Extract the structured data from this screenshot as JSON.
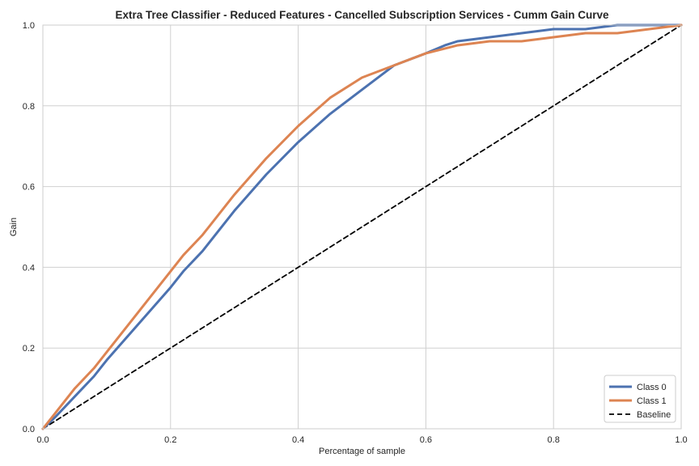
{
  "chart_data": {
    "type": "line",
    "title": "Extra Tree Classifier - Reduced Features - Cancelled Subscription Services - Cumm Gain Curve",
    "xlabel": "Percentage of sample",
    "ylabel": "Gain",
    "xlim": [
      0,
      1
    ],
    "ylim": [
      0,
      1
    ],
    "xticks": [
      "0.0",
      "0.2",
      "0.4",
      "0.6",
      "0.8",
      "1.0"
    ],
    "yticks": [
      "0.0",
      "0.2",
      "0.4",
      "0.6",
      "0.8",
      "1.0"
    ],
    "grid": true,
    "legend_position": "bottom-right",
    "series": [
      {
        "name": "Class 0",
        "color": "#4c72b0",
        "style": "solid",
        "x": [
          0.0,
          0.02,
          0.05,
          0.08,
          0.1,
          0.15,
          0.2,
          0.22,
          0.25,
          0.3,
          0.35,
          0.4,
          0.45,
          0.5,
          0.55,
          0.6,
          0.63,
          0.65,
          0.7,
          0.75,
          0.8,
          0.85,
          0.9,
          0.95,
          1.0
        ],
        "y": [
          0.0,
          0.03,
          0.08,
          0.13,
          0.17,
          0.26,
          0.35,
          0.39,
          0.44,
          0.54,
          0.63,
          0.71,
          0.78,
          0.84,
          0.9,
          0.93,
          0.95,
          0.96,
          0.97,
          0.98,
          0.99,
          0.99,
          1.0,
          1.0,
          1.0
        ]
      },
      {
        "name": "Class 1",
        "color": "#dd8452",
        "style": "solid",
        "x": [
          0.0,
          0.02,
          0.05,
          0.08,
          0.1,
          0.15,
          0.2,
          0.22,
          0.25,
          0.3,
          0.35,
          0.4,
          0.45,
          0.5,
          0.55,
          0.6,
          0.65,
          0.7,
          0.75,
          0.8,
          0.85,
          0.9,
          0.95,
          1.0
        ],
        "y": [
          0.0,
          0.04,
          0.1,
          0.15,
          0.19,
          0.29,
          0.39,
          0.43,
          0.48,
          0.58,
          0.67,
          0.75,
          0.82,
          0.87,
          0.9,
          0.93,
          0.95,
          0.96,
          0.96,
          0.97,
          0.98,
          0.98,
          0.99,
          1.0
        ]
      },
      {
        "name": "Baseline",
        "color": "#000000",
        "style": "dashed",
        "x": [
          0.0,
          1.0
        ],
        "y": [
          0.0,
          1.0
        ]
      }
    ]
  }
}
